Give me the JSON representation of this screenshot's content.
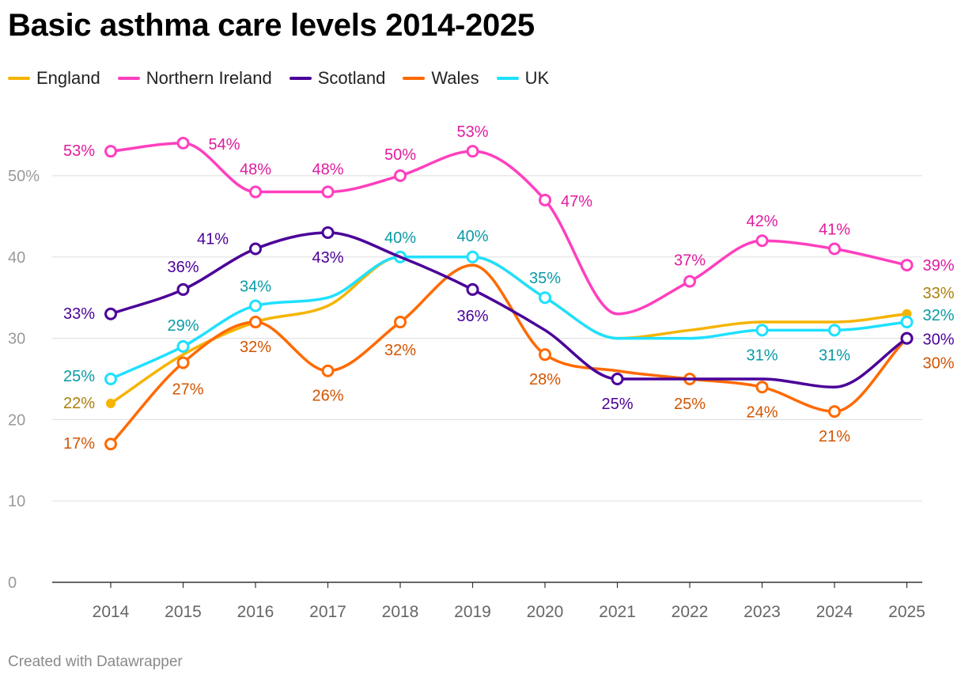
{
  "title": "Basic asthma care levels 2014-2025",
  "footer": "Created with Datawrapper",
  "chart_data": {
    "type": "line",
    "title": "Basic asthma care levels 2014-2025",
    "xlabel": "",
    "ylabel": "",
    "x": [
      "2014",
      "2015",
      "2016",
      "2017",
      "2018",
      "2019",
      "2020",
      "2021",
      "2022",
      "2023",
      "2024",
      "2025"
    ],
    "ylim": [
      0,
      55
    ],
    "yticks": [
      0,
      10,
      20,
      30,
      40,
      50
    ],
    "ytick_labels": [
      "0",
      "10",
      "20",
      "30",
      "40",
      "50%"
    ],
    "grid": true,
    "legend": "top-left",
    "series": [
      {
        "name": "England",
        "color": "#f5b400",
        "label_color": "#a9800a",
        "values": [
          22,
          28,
          32,
          34,
          40,
          40,
          35,
          30,
          31,
          32,
          32,
          33
        ]
      },
      {
        "name": "Northern Ireland",
        "color": "#ff3fbf",
        "label_color": "#e01c9e",
        "values": [
          53,
          54,
          48,
          48,
          50,
          53,
          47,
          33,
          37,
          42,
          41,
          39
        ]
      },
      {
        "name": "Scotland",
        "color": "#4b0099",
        "label_color": "#4b0099",
        "values": [
          33,
          36,
          41,
          43,
          40,
          36,
          31,
          25,
          25,
          25,
          24,
          30
        ]
      },
      {
        "name": "Wales",
        "color": "#ff6a00",
        "label_color": "#d35400",
        "values": [
          17,
          27,
          32,
          26,
          32,
          39,
          28,
          26,
          25,
          24,
          21,
          30
        ]
      },
      {
        "name": "UK",
        "color": "#1fe0ff",
        "label_color": "#0a9aa6",
        "values": [
          25,
          29,
          34,
          35,
          40,
          40,
          35,
          30,
          30,
          31,
          31,
          32
        ]
      }
    ],
    "data_labels": [
      {
        "series": "England",
        "index": 0,
        "text": "22%"
      },
      {
        "series": "England",
        "index": 11,
        "text": "33%"
      },
      {
        "series": "Northern Ireland",
        "index": 0,
        "text": "53%"
      },
      {
        "series": "Northern Ireland",
        "index": 1,
        "text": "54%"
      },
      {
        "series": "Northern Ireland",
        "index": 2,
        "text": "48%"
      },
      {
        "series": "Northern Ireland",
        "index": 3,
        "text": "48%"
      },
      {
        "series": "Northern Ireland",
        "index": 4,
        "text": "50%"
      },
      {
        "series": "Northern Ireland",
        "index": 5,
        "text": "53%"
      },
      {
        "series": "Northern Ireland",
        "index": 6,
        "text": "47%"
      },
      {
        "series": "Northern Ireland",
        "index": 8,
        "text": "37%"
      },
      {
        "series": "Northern Ireland",
        "index": 9,
        "text": "42%"
      },
      {
        "series": "Northern Ireland",
        "index": 10,
        "text": "41%"
      },
      {
        "series": "Northern Ireland",
        "index": 11,
        "text": "39%"
      },
      {
        "series": "Scotland",
        "index": 0,
        "text": "33%"
      },
      {
        "series": "Scotland",
        "index": 1,
        "text": "36%"
      },
      {
        "series": "Scotland",
        "index": 2,
        "text": "41%"
      },
      {
        "series": "Scotland",
        "index": 3,
        "text": "43%"
      },
      {
        "series": "Scotland",
        "index": 5,
        "text": "36%"
      },
      {
        "series": "Scotland",
        "index": 7,
        "text": "25%"
      },
      {
        "series": "Scotland",
        "index": 11,
        "text": "30%"
      },
      {
        "series": "Wales",
        "index": 0,
        "text": "17%"
      },
      {
        "series": "Wales",
        "index": 1,
        "text": "27%"
      },
      {
        "series": "Wales",
        "index": 2,
        "text": "32%"
      },
      {
        "series": "Wales",
        "index": 3,
        "text": "26%"
      },
      {
        "series": "Wales",
        "index": 4,
        "text": "32%"
      },
      {
        "series": "Wales",
        "index": 6,
        "text": "28%"
      },
      {
        "series": "Wales",
        "index": 8,
        "text": "25%"
      },
      {
        "series": "Wales",
        "index": 9,
        "text": "24%"
      },
      {
        "series": "Wales",
        "index": 10,
        "text": "21%"
      },
      {
        "series": "Wales",
        "index": 11,
        "text": "30%"
      },
      {
        "series": "UK",
        "index": 0,
        "text": "25%"
      },
      {
        "series": "UK",
        "index": 1,
        "text": "29%"
      },
      {
        "series": "UK",
        "index": 2,
        "text": "34%"
      },
      {
        "series": "UK",
        "index": 4,
        "text": "40%"
      },
      {
        "series": "UK",
        "index": 5,
        "text": "40%"
      },
      {
        "series": "UK",
        "index": 6,
        "text": "35%"
      },
      {
        "series": "UK",
        "index": 9,
        "text": "31%"
      },
      {
        "series": "UK",
        "index": 10,
        "text": "31%"
      },
      {
        "series": "UK",
        "index": 11,
        "text": "32%"
      }
    ]
  }
}
